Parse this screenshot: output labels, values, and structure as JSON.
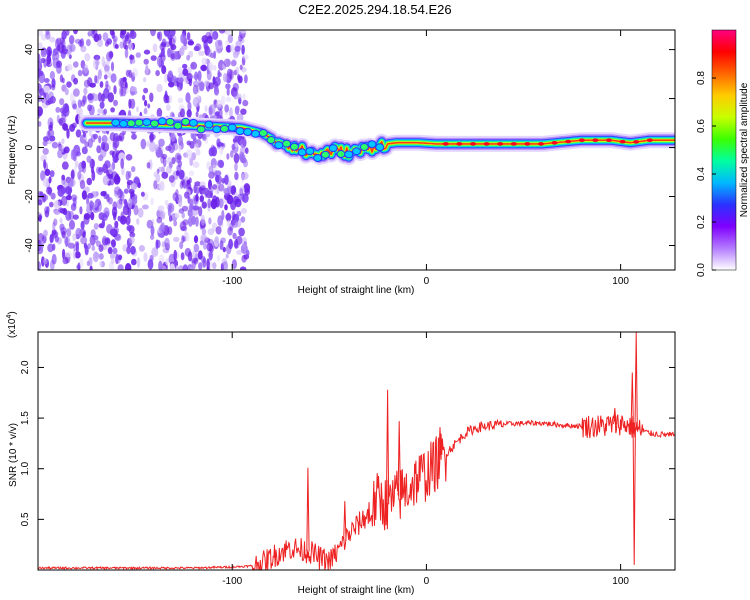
{
  "title": "C2E2.2025.294.18.54.E26",
  "chart_data": [
    {
      "type": "heatmap",
      "title": "C2E2.2025.294.18.54.E26",
      "xlabel": "Height of straight line (km)",
      "ylabel": "Frequency (Hz)",
      "xlim": [
        -200,
        128
      ],
      "ylim": [
        -50,
        48
      ],
      "xticks": [
        "-100",
        "0",
        "100"
      ],
      "xtick_values": [
        -100,
        0,
        100
      ],
      "yticks": [
        "-40",
        "-20",
        "0",
        "20",
        "40"
      ],
      "ytick_values": [
        -40,
        -20,
        0,
        20,
        40
      ],
      "ridge": {
        "x": [
          -175,
          -160,
          -140,
          -120,
          -105,
          -95,
          -85,
          -78,
          -70,
          -62,
          -55,
          -48,
          -40,
          -32,
          -25,
          -15,
          -5,
          5,
          20,
          40,
          60,
          80,
          95,
          105,
          115,
          128
        ],
        "y": [
          10,
          10,
          9.5,
          9,
          8.5,
          8,
          6,
          3,
          1,
          -2,
          -3,
          -1,
          -2,
          -1,
          1,
          2,
          2,
          1.5,
          1.5,
          1.5,
          1.5,
          3,
          3,
          2,
          3,
          3
        ]
      },
      "colorbar": {
        "label": "Normalized spectral amplitude",
        "range": [
          0,
          1
        ],
        "ticks": [
          "0.0",
          "0.2",
          "0.4",
          "0.6",
          "0.8"
        ],
        "tick_values": [
          0.0,
          0.2,
          0.4,
          0.6,
          0.8
        ],
        "colors": [
          "#ffffff",
          "#b37bff",
          "#7f00ff",
          "#2a32ff",
          "#00b8ff",
          "#00ffa0",
          "#3cff00",
          "#c8ff00",
          "#ffcc00",
          "#ff6600",
          "#ff0000",
          "#ff0080"
        ]
      }
    },
    {
      "type": "line",
      "xlabel": "Height of straight line (km)",
      "ylabel": "SNR (10 * v/v)",
      "multiplier_label": "(x10",
      "multiplier_exp": "4",
      "xlim": [
        -200,
        128
      ],
      "ylim": [
        0,
        2.35
      ],
      "xticks": [
        "-100",
        "0",
        "100"
      ],
      "xtick_values": [
        -100,
        0,
        100
      ],
      "yticks": [
        "0.5",
        "1.0",
        "1.5",
        "2.0"
      ],
      "ytick_values": [
        0.5,
        1.0,
        1.5,
        2.0
      ],
      "color": "#ee2222",
      "series": [
        {
          "name": "SNR",
          "x": [
            -200,
            -160,
            -120,
            -100,
            -90,
            -85,
            -80,
            -75,
            -70,
            -65,
            -60,
            -55,
            -50,
            -45,
            -40,
            -35,
            -30,
            -25,
            -20,
            -15,
            -10,
            -5,
            0,
            5,
            10,
            15,
            20,
            25,
            30,
            40,
            50,
            60,
            70,
            80,
            90,
            100,
            105,
            110,
            115,
            120,
            128
          ],
          "values": [
            0.02,
            0.02,
            0.02,
            0.03,
            0.04,
            0.06,
            0.12,
            0.18,
            0.22,
            0.2,
            0.18,
            0.12,
            0.08,
            0.2,
            0.35,
            0.45,
            0.55,
            0.7,
            0.65,
            0.72,
            0.8,
            0.9,
            0.95,
            1.05,
            1.15,
            1.25,
            1.35,
            1.4,
            1.42,
            1.44,
            1.45,
            1.45,
            1.43,
            1.42,
            1.42,
            1.45,
            1.42,
            1.38,
            1.35,
            1.34,
            1.33
          ]
        }
      ],
      "spikes": [
        {
          "x": -61,
          "y": 1.01
        },
        {
          "x": -42,
          "y": 0.68
        },
        {
          "x": -20,
          "y": 1.78
        },
        {
          "x": -14,
          "y": 1.47
        },
        {
          "x": 7,
          "y": 1.41
        },
        {
          "x": 97,
          "y": 1.6
        },
        {
          "x": 106,
          "y": 1.95
        },
        {
          "x": 108,
          "y": 2.35
        },
        {
          "x": 107,
          "y": 0.05
        }
      ]
    }
  ]
}
